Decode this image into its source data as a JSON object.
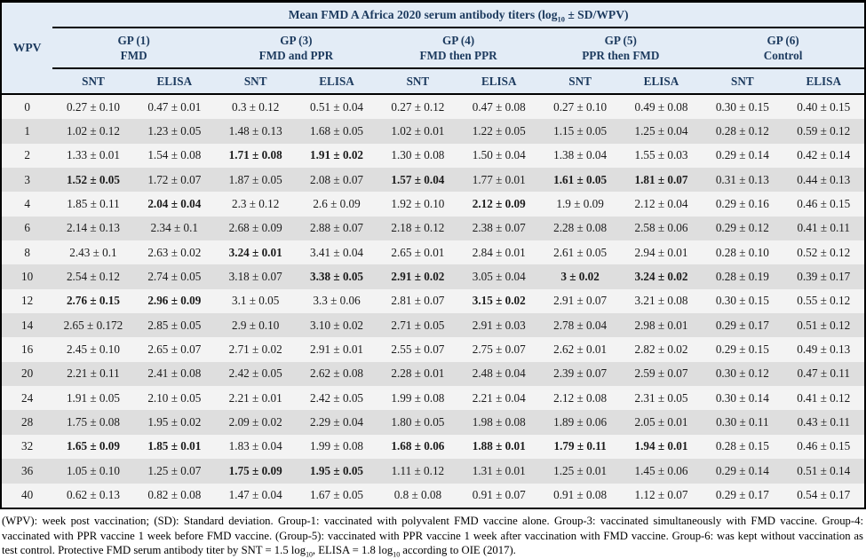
{
  "title": {
    "pre": "Mean FMD A Africa 2020 serum antibody titers (log",
    "sub": "10",
    "post": " ± SD/WPV)"
  },
  "table": {
    "row_header": "WPV",
    "groups": [
      {
        "name": "GP (1)",
        "desc": "FMD"
      },
      {
        "name": "GP (3)",
        "desc": "FMD and PPR"
      },
      {
        "name": "GP (4)",
        "desc": "FMD then PPR"
      },
      {
        "name": "GP (5)",
        "desc": "PPR then FMD"
      },
      {
        "name": "GP (6)",
        "desc": "Control"
      }
    ],
    "subheaders": [
      "SNT",
      "ELISA"
    ],
    "rows": [
      {
        "wpv": "0",
        "values": [
          "0.27 ± 0.10",
          "0.47 ± 0.01",
          "0.3 ± 0.12",
          "0.51 ± 0.04",
          "0.27 ± 0.12",
          "0.47 ± 0.08",
          "0.27 ± 0.10",
          "0.49 ± 0.08",
          "0.30 ± 0.15",
          "0.40 ± 0.15"
        ],
        "bold": []
      },
      {
        "wpv": "1",
        "values": [
          "1.02 ± 0.12",
          "1.23 ± 0.05",
          "1.48 ± 0.13",
          "1.68 ± 0.05",
          "1.02 ± 0.01",
          "1.22 ± 0.05",
          "1.15 ± 0.05",
          "1.25 ± 0.04",
          "0.28 ± 0.12",
          "0.59 ± 0.12"
        ],
        "bold": []
      },
      {
        "wpv": "2",
        "values": [
          "1.33 ± 0.01",
          "1.54 ± 0.08",
          "1.71 ± 0.08",
          "1.91 ± 0.02",
          "1.30 ± 0.08",
          "1.50 ± 0.04",
          "1.38 ± 0.04",
          "1.55 ± 0.03",
          "0.29 ± 0.14",
          "0.42 ± 0.14"
        ],
        "bold": [
          2,
          3
        ]
      },
      {
        "wpv": "3",
        "values": [
          "1.52 ± 0.05",
          "1.72 ± 0.07",
          "1.87 ± 0.05",
          "2.08 ± 0.07",
          "1.57 ± 0.04",
          "1.77 ± 0.01",
          "1.61 ± 0.05",
          "1.81 ± 0.07",
          "0.31 ± 0.13",
          "0.44 ± 0.13"
        ],
        "bold": [
          0,
          4,
          6,
          7
        ]
      },
      {
        "wpv": "4",
        "values": [
          "1.85 ± 0.11",
          "2.04 ± 0.04",
          "2.3 ± 0.12",
          "2.6 ± 0.09",
          "1.92 ± 0.10",
          "2.12 ± 0.09",
          "1.9 ± 0.09",
          "2.12 ± 0.04",
          "0.29 ± 0.16",
          "0.46 ± 0.15"
        ],
        "bold": [
          1,
          5
        ]
      },
      {
        "wpv": "6",
        "values": [
          "2.14 ± 0.13",
          "2.34 ± 0.1",
          "2.68 ± 0.09",
          "2.88 ± 0.07",
          "2.18 ± 0.12",
          "2.38 ± 0.07",
          "2.28 ± 0.08",
          "2.58 ± 0.06",
          "0.29 ± 0.12",
          "0.41 ± 0.11"
        ],
        "bold": []
      },
      {
        "wpv": "8",
        "values": [
          "2.43 ± 0.1",
          "2.63 ± 0.02",
          "3.24 ± 0.01",
          "3.41 ± 0.04",
          "2.65 ± 0.01",
          "2.84 ± 0.01",
          "2.61 ± 0.05",
          "2.94 ± 0.01",
          "0.28 ± 0.10",
          "0.52 ± 0.12"
        ],
        "bold": [
          2
        ]
      },
      {
        "wpv": "10",
        "values": [
          "2.54 ± 0.12",
          "2.74 ± 0.05",
          "3.18 ± 0.07",
          "3.38 ± 0.05",
          "2.91 ± 0.02",
          "3.05 ± 0.04",
          "3 ± 0.02",
          "3.24 ± 0.02",
          "0.28 ± 0.19",
          "0.39 ± 0.17"
        ],
        "bold": [
          3,
          4,
          6,
          7
        ]
      },
      {
        "wpv": "12",
        "values": [
          "2.76 ± 0.15",
          "2.96 ± 0.09",
          "3.1 ± 0.05",
          "3.3 ± 0.06",
          "2.81 ± 0.07",
          "3.15 ± 0.02",
          "2.91 ± 0.07",
          "3.21 ± 0.08",
          "0.30 ± 0.15",
          "0.55 ± 0.12"
        ],
        "bold": [
          0,
          1,
          5
        ]
      },
      {
        "wpv": "14",
        "values": [
          "2.65 ± 0.172",
          "2.85 ± 0.05",
          "2.9 ± 0.10",
          "3.10 ± 0.02",
          "2.71 ± 0.05",
          "2.91 ± 0.03",
          "2.78 ± 0.04",
          "2.98 ± 0.01",
          "0.29 ± 0.17",
          "0.51 ± 0.12"
        ],
        "bold": []
      },
      {
        "wpv": "16",
        "values": [
          "2.45 ± 0.10",
          "2.65 ± 0.07",
          "2.71 ± 0.02",
          "2.91 ± 0.01",
          "2.55 ± 0.07",
          "2.75 ± 0.07",
          "2.62 ± 0.01",
          "2.82 ± 0.02",
          "0.29 ± 0.15",
          "0.49 ± 0.13"
        ],
        "bold": []
      },
      {
        "wpv": "20",
        "values": [
          "2.21 ± 0.11",
          "2.41 ± 0.08",
          "2.42 ± 0.05",
          "2.62 ± 0.08",
          "2.28 ± 0.01",
          "2.48 ± 0.04",
          "2.39 ± 0.07",
          "2.59 ± 0.07",
          "0.30 ± 0.12",
          "0.47 ± 0.11"
        ],
        "bold": []
      },
      {
        "wpv": "24",
        "values": [
          "1.91 ± 0.05",
          "2.10 ± 0.05",
          "2.21 ± 0.01",
          "2.42 ± 0.05",
          "1.99 ± 0.08",
          "2.21 ± 0.04",
          "2.12 ± 0.08",
          "2.31 ± 0.05",
          "0.30 ± 0.14",
          "0.41 ± 0.12"
        ],
        "bold": []
      },
      {
        "wpv": "28",
        "values": [
          "1.75 ± 0.08",
          "1.95 ± 0.02",
          "2.09 ± 0.02",
          "2.29 ± 0.04",
          "1.80 ± 0.05",
          "1.98 ± 0.08",
          "1.89 ± 0.06",
          "2.05 ± 0.01",
          "0.30 ± 0.11",
          "0.43 ± 0.11"
        ],
        "bold": []
      },
      {
        "wpv": "32",
        "values": [
          "1.65 ± 0.09",
          "1.85 ± 0.01",
          "1.83 ± 0.04",
          "1.99 ± 0.08",
          "1.68 ± 0.06",
          "1.88 ± 0.01",
          "1.79 ± 0.11",
          "1.94 ± 0.01",
          "0.28 ± 0.15",
          "0.46 ± 0.15"
        ],
        "bold": [
          0,
          1,
          4,
          5,
          6,
          7
        ]
      },
      {
        "wpv": "36",
        "values": [
          "1.05 ± 0.10",
          "1.25 ± 0.07",
          "1.75 ± 0.09",
          "1.95 ± 0.05",
          "1.11 ± 0.12",
          "1.31 ± 0.01",
          "1.25 ± 0.01",
          "1.45 ± 0.06",
          "0.29 ± 0.14",
          "0.51 ± 0.14"
        ],
        "bold": [
          2,
          3
        ]
      },
      {
        "wpv": "40",
        "values": [
          "0.62 ± 0.13",
          "0.82 ± 0.08",
          "1.47 ± 0.04",
          "1.67 ± 0.05",
          "0.8 ± 0.08",
          "0.91 ± 0.07",
          "0.91 ± 0.08",
          "1.12 ± 0.07",
          "0.29 ± 0.17",
          "0.54 ± 0.17"
        ],
        "bold": []
      }
    ]
  },
  "footnote": {
    "part1": "(WPV): week post vaccination; (SD): Standard deviation. Group-1: vaccinated with polyvalent FMD vaccine alone. Group-3: vaccinated simultaneously with FMD vaccine. Group-4: vaccinated with PPR vaccine 1 week before FMD vaccine. (Group-5): vaccinated with PPR vaccine 1 week after vaccination with FMD vaccine. Group-6: was kept without vaccination as test control. Protective FMD serum antibody titer by SNT = 1.5 log",
    "sub1": "10",
    "part2": ", ELISA = 1.8 log",
    "sub2": "10",
    "part3": " according to OIE (2017)."
  },
  "colors": {
    "header_bg": "#e3ecf6",
    "header_text": "#1c3a5e",
    "row_light": "#f3f3f3",
    "row_dark": "#dedede",
    "border": "#000000"
  }
}
